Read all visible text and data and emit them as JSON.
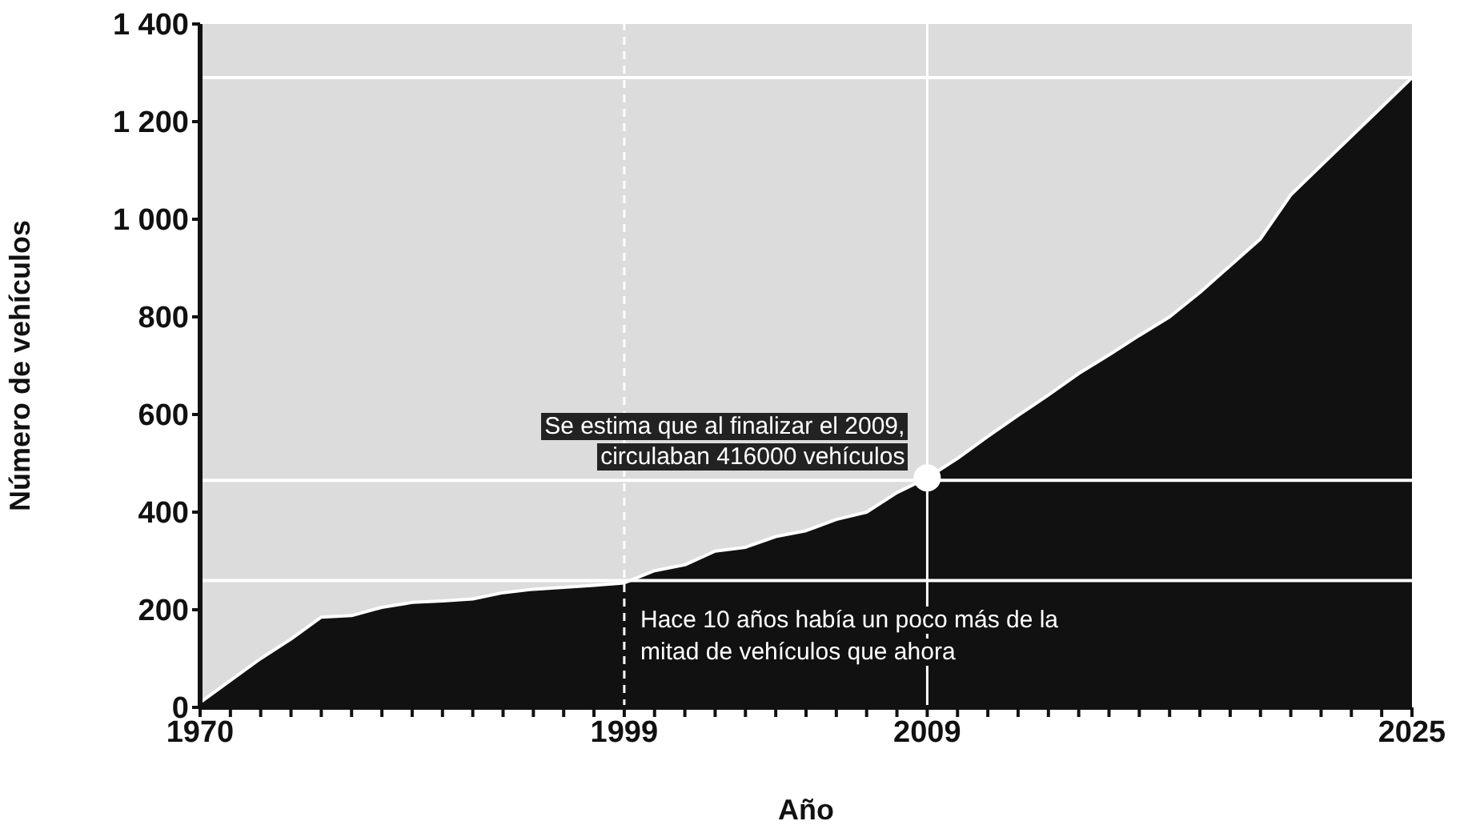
{
  "chart_data": {
    "type": "area",
    "xlabel": "Año",
    "ylabel": "Número de vehículos",
    "categories": [
      "1970",
      null,
      null,
      null,
      null,
      null,
      null,
      null,
      null,
      null,
      null,
      null,
      null,
      null,
      "1999",
      null,
      null,
      null,
      null,
      null,
      null,
      null,
      null,
      null,
      "2009",
      null,
      null,
      null,
      null,
      null,
      null,
      null,
      null,
      null,
      null,
      null,
      null,
      null,
      null,
      null,
      "2025"
    ],
    "values": [
      10,
      55,
      100,
      140,
      185,
      188,
      205,
      215,
      218,
      222,
      235,
      242,
      246,
      250,
      255,
      280,
      292,
      320,
      328,
      350,
      362,
      385,
      400,
      440,
      470,
      510,
      555,
      598,
      640,
      684,
      722,
      762,
      800,
      850,
      905,
      960,
      1050,
      1110,
      1170,
      1230,
      1290
    ],
    "color": "#111111",
    "ylim": [
      0,
      1400
    ],
    "yticks": [
      0,
      200,
      400,
      600,
      800,
      {
        "value": 1000,
        "label": "1 000"
      },
      {
        "value": 1200,
        "label": "1 200"
      },
      {
        "value": 1400,
        "label": "1 400"
      }
    ],
    "grid": false,
    "ref_lines": [
      {
        "axis": "y",
        "value": 1290,
        "color": "#ffffff"
      },
      {
        "axis": "y",
        "value": 465,
        "color": "#ffffff"
      },
      {
        "axis": "y",
        "value": 260,
        "color": "#ffffff"
      },
      {
        "axis": "x",
        "value": "1999",
        "color": "#ffffff",
        "line_style": "dashed"
      },
      {
        "axis": "x",
        "value": "2009",
        "color": "#ffffff",
        "line_style": "solid"
      }
    ],
    "annotations": [
      {
        "text": "Se estima que al finalizar el 2009, circulaban 416000 vehículos",
        "x": "2009",
        "y": 470
      },
      "Hace 10 años había un poco más de la mitad de vehículos que ahora"
    ]
  }
}
